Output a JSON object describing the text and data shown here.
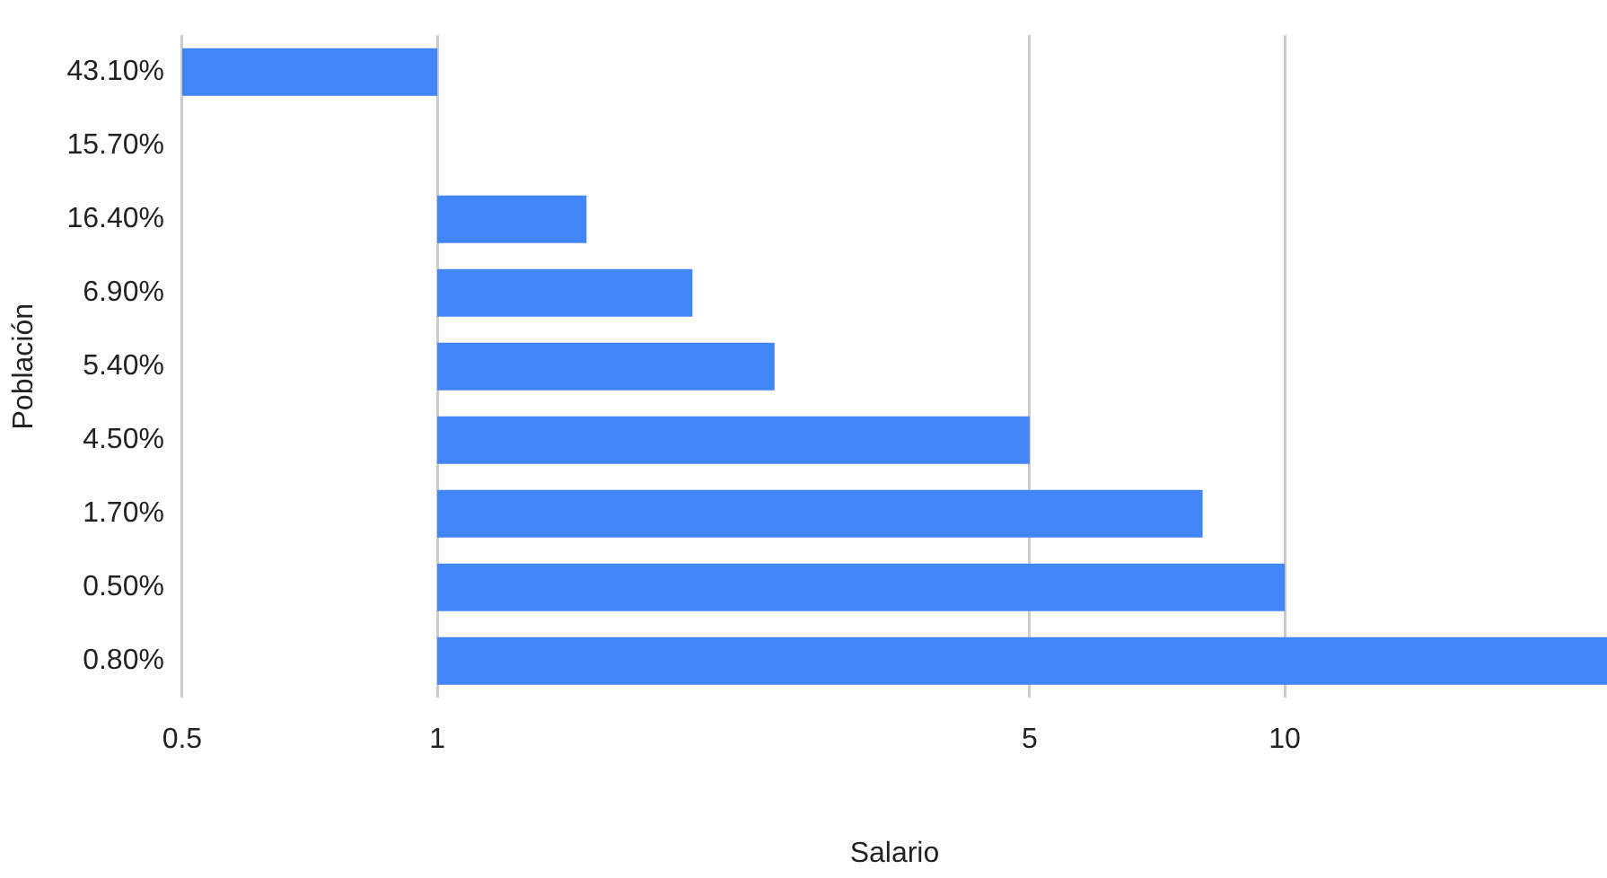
{
  "chart_data": {
    "type": "bar",
    "orientation": "horizontal",
    "xlabel": "Salario",
    "ylabel": "Población",
    "categories": [
      "43.10%",
      "15.70%",
      "16.40%",
      "6.90%",
      "5.40%",
      "4.50%",
      "1.70%",
      "0.50%",
      "0.80%"
    ],
    "base": [
      1,
      null,
      1,
      1,
      1,
      1,
      1,
      1,
      1
    ],
    "values": [
      -0.5,
      null,
      0.5,
      1,
      1.5,
      4,
      7,
      9,
      23
    ],
    "color": "#4285f4",
    "log": "x",
    "xlim": [
      0.5,
      24
    ],
    "xticks": [
      0.5,
      1,
      5,
      10
    ],
    "grid": "x",
    "legend": false
  }
}
